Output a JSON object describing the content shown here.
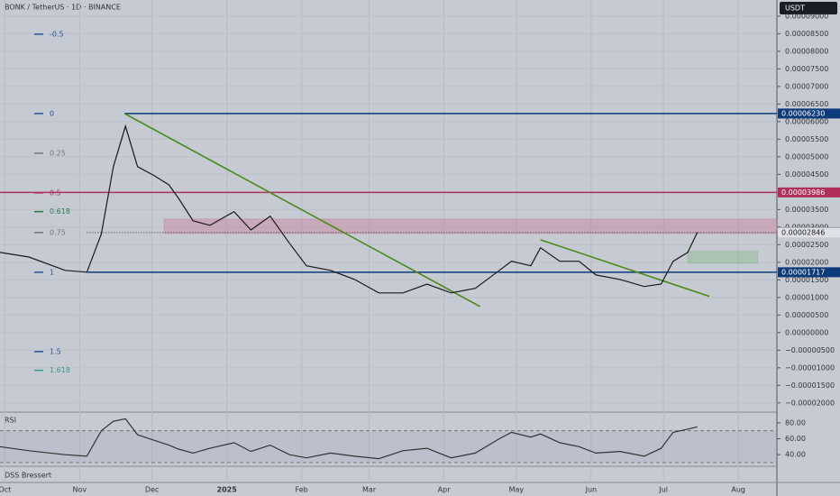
{
  "chart_data": [
    {
      "type": "line",
      "title": "BONK / TetherUS · 1D · BINANCE",
      "currency": "USDT",
      "color": "#1a1a1a",
      "x": [
        -2,
        10,
        25,
        34,
        40,
        45,
        50,
        55,
        62,
        68,
        72,
        78,
        85,
        95,
        102,
        110,
        118,
        125,
        135,
        145,
        155,
        165,
        175,
        185,
        195,
        205,
        210,
        218,
        222,
        230,
        238,
        245,
        255,
        265,
        272,
        277,
        283,
        287
      ],
      "values": [
        2.28e-05,
        2.15e-05,
        1.77e-05,
        1.72e-05,
        2.8e-05,
        4.72e-05,
        5.87e-05,
        4.72e-05,
        4.46e-05,
        4.2e-05,
        3.82e-05,
        3.18e-05,
        3.05e-05,
        3.44e-05,
        2.92e-05,
        3.31e-05,
        2.54e-05,
        1.9e-05,
        1.77e-05,
        1.51e-05,
        1.13e-05,
        1.13e-05,
        1.38e-05,
        1.13e-05,
        1.26e-05,
        1.77e-05,
        2.03e-05,
        1.9e-05,
        2.41e-05,
        2.03e-05,
        2.03e-05,
        1.64e-05,
        1.51e-05,
        1.31e-05,
        1.38e-05,
        2.03e-05,
        2.28e-05,
        2.85e-05
      ],
      "xlim": [
        -2,
        320
      ],
      "xticks": [
        {
          "value": 0,
          "label": "Oct"
        },
        {
          "value": 31,
          "label": "Nov"
        },
        {
          "value": 61,
          "label": "Dec"
        },
        {
          "value": 92,
          "label": "2025"
        },
        {
          "value": 123,
          "label": "Feb"
        },
        {
          "value": 151,
          "label": "Mar"
        },
        {
          "value": 182,
          "label": "Apr"
        },
        {
          "value": 212,
          "label": "May"
        },
        {
          "value": 243,
          "label": "Jun"
        },
        {
          "value": 273,
          "label": "Jul"
        },
        {
          "value": 304,
          "label": "Aug"
        }
      ],
      "ylim": [
        -2.21e-05,
        9.33e-05
      ],
      "yticks": [
        {
          "value": 9e-05,
          "label": "0.00009000"
        },
        {
          "value": 8.5e-05,
          "label": "0.00008500"
        },
        {
          "value": 8e-05,
          "label": "0.00008000"
        },
        {
          "value": 7.5e-05,
          "label": "0.00007500"
        },
        {
          "value": 7e-05,
          "label": "0.00007000"
        },
        {
          "value": 6.5e-05,
          "label": "0.00006500"
        },
        {
          "value": 6e-05,
          "label": "0.00006000"
        },
        {
          "value": 5.5e-05,
          "label": "0.00005500"
        },
        {
          "value": 5e-05,
          "label": "0.00005000"
        },
        {
          "value": 4.5e-05,
          "label": "0.00004500"
        },
        {
          "value": 4e-05,
          "label": "0.00004000"
        },
        {
          "value": 3.5e-05,
          "label": "0.00003500"
        },
        {
          "value": 3e-05,
          "label": "0.00003000"
        },
        {
          "value": 2.5e-05,
          "label": "0.00002500"
        },
        {
          "value": 2e-05,
          "label": "0.00002000"
        },
        {
          "value": 1.5e-05,
          "label": "0.00001500"
        },
        {
          "value": 1e-05,
          "label": "0.00001000"
        },
        {
          "value": 5e-06,
          "label": "0.00000500"
        },
        {
          "value": 0,
          "label": "0.00000000"
        },
        {
          "value": -5e-06,
          "label": "−0.00000500"
        },
        {
          "value": -1e-05,
          "label": "−0.00001000"
        },
        {
          "value": -1.5e-05,
          "label": "−0.00001500"
        },
        {
          "value": -2e-05,
          "label": "−0.00002000"
        }
      ],
      "grid": true,
      "price_lines": [
        {
          "value": 6.23e-05,
          "label": "0.00006230",
          "color": "#0d3a78",
          "style": "solid",
          "start": 49.6
        },
        {
          "value": 3.986e-05,
          "label": "0.00003986",
          "color": "#b0305a",
          "style": "solid",
          "start": -2
        },
        {
          "value": 2.857e-05,
          "label": "0.00002857",
          "color": "#444444",
          "style": "none",
          "start": 287
        },
        {
          "value": 2.846e-05,
          "label": "0.00002846",
          "color": "#333333",
          "style": "dotted",
          "start": 34
        },
        {
          "value": 1.717e-05,
          "label": "0.00001717",
          "color": "#0d3a78",
          "style": "solid",
          "start": 34
        }
      ],
      "fib_levels": [
        {
          "value": -0.5,
          "color": "#2a4fa0"
        },
        {
          "value": 0,
          "color": "#2a4fa0"
        },
        {
          "value": 0.25,
          "color": "#777777"
        },
        {
          "value": 0.5,
          "color": "#b0305a"
        },
        {
          "value": 0.618,
          "color": "#2f7a4a"
        },
        {
          "value": 0.75,
          "color": "#777777"
        },
        {
          "value": 1,
          "color": "#2a4fa0"
        },
        {
          "value": 1.5,
          "color": "#2a4fa0"
        },
        {
          "value": 1.618,
          "color": "#3a9a8a"
        }
      ],
      "trendlines": [
        {
          "x": [
            49.6,
            197
          ],
          "values": [
            6.23e-05,
            7.4e-06
          ],
          "color": "#4a8a1a"
        },
        {
          "x": [
            222,
            292
          ],
          "values": [
            2.64e-05,
            1.03e-05
          ],
          "color": "#4a8a1a"
        }
      ],
      "zones": [
        {
          "x": [
            66,
            320
          ],
          "values": [
            3.23e-05,
            2.82e-05
          ],
          "color": "rgba(200,110,140,0.35)"
        },
        {
          "x": [
            283,
            312
          ],
          "values": [
            2.31e-05,
            1.97e-05
          ],
          "color": "rgba(120,180,120,0.35)"
        }
      ]
    },
    {
      "type": "line",
      "title": "RSI",
      "color": "#333333",
      "x": [
        -2,
        10,
        25,
        34,
        40,
        45,
        50,
        55,
        62,
        68,
        72,
        78,
        85,
        95,
        102,
        110,
        118,
        125,
        135,
        145,
        155,
        165,
        175,
        185,
        195,
        205,
        210,
        218,
        222,
        230,
        238,
        245,
        255,
        265,
        272,
        277,
        283,
        287
      ],
      "values": [
        50,
        45,
        40,
        38,
        70,
        82,
        85,
        65,
        58,
        52,
        47,
        42,
        48,
        55,
        44,
        52,
        40,
        36,
        42,
        38,
        35,
        45,
        48,
        36,
        42,
        60,
        68,
        62,
        66,
        55,
        50,
        42,
        44,
        38,
        48,
        68,
        72,
        75
      ],
      "ylim": [
        30,
        90
      ],
      "yticks": [
        {
          "value": 40,
          "label": "40.00"
        },
        {
          "value": 60,
          "label": "60.00"
        },
        {
          "value": 80,
          "label": "80.00"
        }
      ],
      "bands": [
        30,
        70
      ]
    },
    {
      "type": "indicator",
      "title": "DSS Bressert"
    }
  ]
}
